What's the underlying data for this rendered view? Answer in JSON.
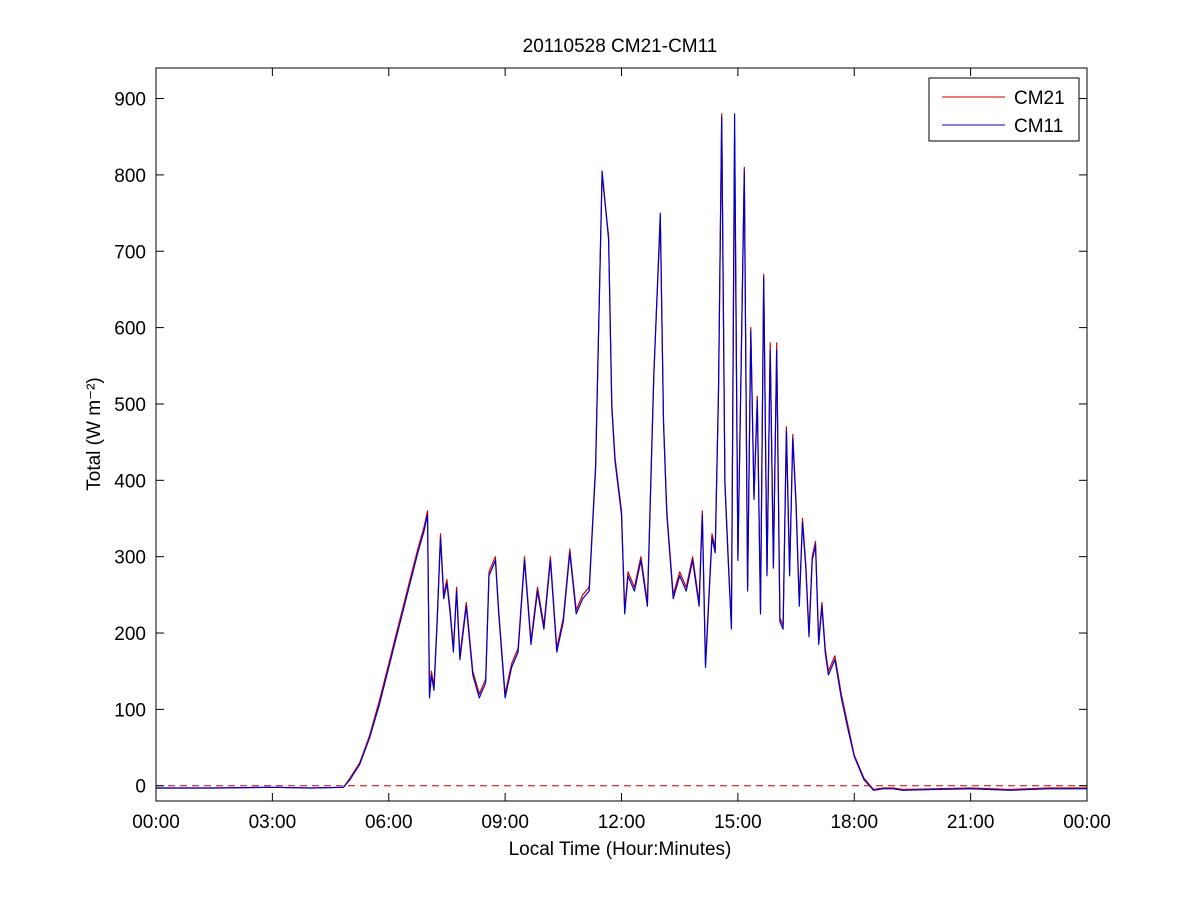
{
  "chart_data": {
    "type": "line",
    "title": "20110528 CM21-CM11",
    "xlabel": "Local Time (Hour:Minutes)",
    "ylabel": "Total (W m⁻²)",
    "xlim": [
      "00:00",
      "24:00"
    ],
    "ylim": [
      -20,
      940
    ],
    "x_ticks": [
      "00:00",
      "03:00",
      "06:00",
      "09:00",
      "12:00",
      "15:00",
      "18:00",
      "21:00",
      "00:00"
    ],
    "y_ticks": [
      0,
      100,
      200,
      300,
      400,
      500,
      600,
      700,
      800,
      900
    ],
    "grid": false,
    "legend_position": "top-right",
    "reference_line": {
      "y": 0,
      "style": "dashed",
      "color": "#cc0000"
    },
    "series": [
      {
        "name": "CM21",
        "color": "#cc0000",
        "x": [
          "00:00",
          "01:30",
          "03:00",
          "04:00",
          "04:50",
          "05:00",
          "05:15",
          "05:30",
          "05:45",
          "06:00",
          "06:15",
          "06:30",
          "06:45",
          "06:55",
          "07:00",
          "07:03",
          "07:06",
          "07:10",
          "07:15",
          "07:20",
          "07:25",
          "07:30",
          "07:35",
          "07:40",
          "07:45",
          "07:50",
          "08:00",
          "08:10",
          "08:20",
          "08:30",
          "08:35",
          "08:45",
          "08:50",
          "09:00",
          "09:10",
          "09:20",
          "09:30",
          "09:40",
          "09:50",
          "10:00",
          "10:10",
          "10:20",
          "10:30",
          "10:40",
          "10:50",
          "11:00",
          "11:10",
          "11:20",
          "11:30",
          "11:40",
          "11:45",
          "11:50",
          "12:00",
          "12:05",
          "12:10",
          "12:20",
          "12:30",
          "12:40",
          "12:50",
          "13:00",
          "13:05",
          "13:10",
          "13:20",
          "13:30",
          "13:40",
          "13:50",
          "14:00",
          "14:05",
          "14:10",
          "14:20",
          "14:25",
          "14:30",
          "14:35",
          "14:40",
          "14:45",
          "14:50",
          "14:55",
          "15:00",
          "15:05",
          "15:10",
          "15:15",
          "15:20",
          "15:25",
          "15:30",
          "15:35",
          "15:40",
          "15:45",
          "15:50",
          "15:55",
          "16:00",
          "16:05",
          "16:10",
          "16:15",
          "16:20",
          "16:25",
          "16:30",
          "16:35",
          "16:40",
          "16:45",
          "16:50",
          "16:55",
          "17:00",
          "17:05",
          "17:10",
          "17:15",
          "17:20",
          "17:30",
          "17:40",
          "17:50",
          "18:00",
          "18:15",
          "18:30",
          "18:45",
          "19:00",
          "19:15",
          "20:00",
          "21:00",
          "22:00",
          "23:00",
          "24:00"
        ],
        "values": [
          -3,
          -3,
          -2,
          -3,
          -2,
          10,
          30,
          65,
          110,
          160,
          210,
          260,
          310,
          340,
          360,
          120,
          150,
          130,
          220,
          330,
          250,
          270,
          230,
          180,
          260,
          170,
          240,
          150,
          120,
          140,
          280,
          300,
          230,
          120,
          160,
          180,
          300,
          190,
          260,
          210,
          300,
          180,
          220,
          310,
          230,
          250,
          260,
          420,
          800,
          720,
          500,
          430,
          360,
          230,
          280,
          260,
          300,
          240,
          540,
          740,
          480,
          360,
          250,
          280,
          260,
          300,
          240,
          360,
          160,
          330,
          310,
          520,
          880,
          400,
          300,
          210,
          850,
          300,
          550,
          810,
          260,
          600,
          380,
          510,
          230,
          670,
          280,
          580,
          290,
          580,
          220,
          210,
          470,
          280,
          460,
          370,
          240,
          350,
          290,
          200,
          300,
          320,
          190,
          240,
          180,
          150,
          170,
          120,
          80,
          40,
          10,
          -5,
          -3,
          -3,
          -5,
          -4,
          -3,
          -5,
          -3,
          -3
        ]
      },
      {
        "name": "CM11",
        "color": "#0000cc",
        "x": [
          "00:00",
          "01:30",
          "03:00",
          "04:00",
          "04:50",
          "05:00",
          "05:15",
          "05:30",
          "05:45",
          "06:00",
          "06:15",
          "06:30",
          "06:45",
          "06:55",
          "07:00",
          "07:03",
          "07:06",
          "07:10",
          "07:15",
          "07:20",
          "07:25",
          "07:30",
          "07:35",
          "07:40",
          "07:45",
          "07:50",
          "08:00",
          "08:10",
          "08:20",
          "08:30",
          "08:35",
          "08:45",
          "08:50",
          "09:00",
          "09:10",
          "09:20",
          "09:30",
          "09:40",
          "09:50",
          "10:00",
          "10:10",
          "10:20",
          "10:30",
          "10:40",
          "10:50",
          "11:00",
          "11:10",
          "11:20",
          "11:30",
          "11:40",
          "11:45",
          "11:50",
          "12:00",
          "12:05",
          "12:10",
          "12:20",
          "12:30",
          "12:40",
          "12:50",
          "13:00",
          "13:05",
          "13:10",
          "13:20",
          "13:30",
          "13:40",
          "13:50",
          "14:00",
          "14:05",
          "14:10",
          "14:20",
          "14:25",
          "14:30",
          "14:35",
          "14:40",
          "14:45",
          "14:50",
          "14:55",
          "15:00",
          "15:05",
          "15:10",
          "15:15",
          "15:20",
          "15:25",
          "15:30",
          "15:35",
          "15:40",
          "15:45",
          "15:50",
          "15:55",
          "16:00",
          "16:05",
          "16:10",
          "16:15",
          "16:20",
          "16:25",
          "16:30",
          "16:35",
          "16:40",
          "16:45",
          "16:50",
          "16:55",
          "17:00",
          "17:05",
          "17:10",
          "17:15",
          "17:20",
          "17:30",
          "17:40",
          "17:50",
          "18:00",
          "18:15",
          "18:30",
          "18:45",
          "19:00",
          "19:15",
          "20:00",
          "21:00",
          "22:00",
          "23:00",
          "24:00"
        ],
        "values": [
          -3,
          -3,
          -2,
          -3,
          -2,
          8,
          28,
          62,
          105,
          155,
          205,
          255,
          305,
          335,
          355,
          115,
          145,
          125,
          215,
          325,
          245,
          265,
          225,
          175,
          255,
          165,
          235,
          145,
          115,
          135,
          275,
          295,
          225,
          115,
          155,
          175,
          295,
          185,
          255,
          205,
          295,
          175,
          215,
          305,
          225,
          245,
          255,
          415,
          805,
          715,
          495,
          425,
          355,
          225,
          275,
          255,
          295,
          235,
          535,
          750,
          475,
          355,
          245,
          275,
          255,
          295,
          235,
          355,
          155,
          325,
          305,
          515,
          875,
          395,
          295,
          205,
          880,
          295,
          545,
          805,
          255,
          595,
          375,
          505,
          225,
          665,
          275,
          570,
          285,
          570,
          215,
          205,
          465,
          275,
          455,
          365,
          235,
          345,
          285,
          195,
          295,
          315,
          185,
          235,
          175,
          145,
          165,
          115,
          75,
          38,
          8,
          -6,
          -4,
          -4,
          -6,
          -5,
          -4,
          -6,
          -4,
          -4
        ]
      }
    ]
  }
}
